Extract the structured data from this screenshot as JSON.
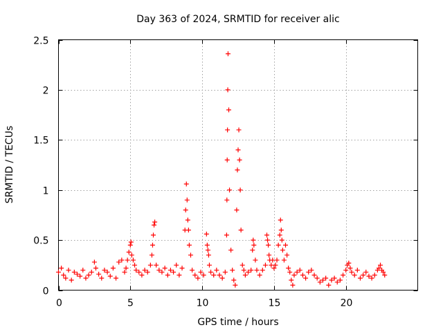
{
  "chart_data": {
    "type": "scatter",
    "title": "Day 363 of 2024, SRMTID for receiver alic",
    "xlabel": "GPS time / hours",
    "ylabel": "SRMTID / TECUs",
    "xlim": [
      0,
      25
    ],
    "ylim": [
      0,
      2.5
    ],
    "xticks": [
      0,
      5,
      10,
      15,
      20
    ],
    "yticks": [
      0,
      0.5,
      1,
      1.5,
      2,
      2.5
    ],
    "xtick_labels": [
      "0",
      "5",
      "10",
      "15",
      "20"
    ],
    "ytick_labels": [
      "0",
      "0.5",
      "1",
      "1.5",
      "2",
      "2.5"
    ],
    "grid": true,
    "marker": "+",
    "color": "#ff0000",
    "series": [
      {
        "name": "SRMTID",
        "x": [
          0.0,
          0.2,
          0.35,
          0.5,
          0.7,
          0.9,
          1.1,
          1.3,
          1.5,
          1.7,
          1.9,
          2.1,
          2.3,
          2.5,
          2.6,
          2.8,
          3.0,
          3.2,
          3.4,
          3.6,
          3.8,
          4.0,
          4.2,
          4.4,
          4.6,
          4.7,
          4.8,
          4.9,
          5.0,
          5.05,
          5.1,
          5.2,
          5.3,
          5.4,
          5.6,
          5.8,
          6.0,
          6.2,
          6.4,
          6.5,
          6.55,
          6.6,
          6.65,
          6.7,
          6.8,
          7.0,
          7.2,
          7.4,
          7.6,
          7.8,
          8.0,
          8.2,
          8.4,
          8.6,
          8.8,
          8.85,
          8.9,
          8.95,
          9.0,
          9.05,
          9.1,
          9.2,
          9.3,
          9.5,
          9.7,
          9.9,
          10.1,
          10.3,
          10.35,
          10.4,
          10.45,
          10.5,
          10.6,
          10.8,
          11.0,
          11.2,
          11.4,
          11.6,
          11.7,
          11.72,
          11.74,
          11.76,
          11.78,
          11.8,
          11.85,
          11.9,
          12.0,
          12.1,
          12.2,
          12.3,
          12.4,
          12.45,
          12.5,
          12.55,
          12.6,
          12.65,
          12.7,
          12.8,
          12.9,
          13.0,
          13.2,
          13.4,
          13.5,
          13.55,
          13.6,
          13.7,
          13.8,
          14.0,
          14.2,
          14.4,
          14.5,
          14.55,
          14.6,
          14.65,
          14.7,
          14.8,
          14.9,
          15.0,
          15.1,
          15.2,
          15.3,
          15.4,
          15.45,
          15.5,
          15.55,
          15.6,
          15.7,
          15.8,
          15.9,
          16.0,
          16.1,
          16.2,
          16.3,
          16.4,
          16.6,
          16.8,
          17.0,
          17.2,
          17.4,
          17.6,
          17.8,
          18.0,
          18.2,
          18.4,
          18.6,
          18.8,
          19.0,
          19.2,
          19.4,
          19.6,
          19.8,
          20.0,
          20.1,
          20.2,
          20.3,
          20.4,
          20.6,
          20.8,
          21.0,
          21.2,
          21.4,
          21.6,
          21.8,
          22.0,
          22.2,
          22.3,
          22.4,
          22.5,
          22.6,
          22.7
        ],
        "y": [
          0.18,
          0.22,
          0.15,
          0.12,
          0.2,
          0.1,
          0.18,
          0.16,
          0.14,
          0.2,
          0.12,
          0.15,
          0.18,
          0.28,
          0.22,
          0.16,
          0.12,
          0.2,
          0.18,
          0.14,
          0.22,
          0.12,
          0.28,
          0.3,
          0.18,
          0.22,
          0.3,
          0.38,
          0.45,
          0.48,
          0.35,
          0.3,
          0.25,
          0.2,
          0.18,
          0.15,
          0.2,
          0.18,
          0.25,
          0.35,
          0.45,
          0.55,
          0.65,
          0.68,
          0.25,
          0.2,
          0.18,
          0.22,
          0.15,
          0.2,
          0.18,
          0.25,
          0.15,
          0.22,
          0.6,
          0.8,
          1.06,
          0.9,
          0.7,
          0.6,
          0.45,
          0.35,
          0.2,
          0.15,
          0.12,
          0.18,
          0.15,
          0.56,
          0.45,
          0.4,
          0.35,
          0.25,
          0.18,
          0.15,
          0.2,
          0.15,
          0.12,
          0.18,
          0.55,
          0.9,
          1.3,
          1.6,
          2.0,
          2.36,
          1.8,
          1.0,
          0.4,
          0.2,
          0.1,
          0.05,
          0.8,
          1.2,
          1.4,
          1.6,
          1.3,
          1.0,
          0.6,
          0.25,
          0.2,
          0.15,
          0.18,
          0.2,
          0.4,
          0.5,
          0.45,
          0.3,
          0.2,
          0.15,
          0.2,
          0.25,
          0.55,
          0.5,
          0.45,
          0.35,
          0.3,
          0.25,
          0.3,
          0.22,
          0.25,
          0.3,
          0.45,
          0.55,
          0.7,
          0.6,
          0.5,
          0.4,
          0.3,
          0.45,
          0.35,
          0.22,
          0.18,
          0.1,
          0.05,
          0.15,
          0.18,
          0.2,
          0.15,
          0.12,
          0.18,
          0.2,
          0.15,
          0.12,
          0.08,
          0.1,
          0.12,
          0.05,
          0.1,
          0.12,
          0.08,
          0.1,
          0.15,
          0.2,
          0.25,
          0.27,
          0.22,
          0.18,
          0.15,
          0.2,
          0.12,
          0.15,
          0.18,
          0.14,
          0.12,
          0.15,
          0.2,
          0.22,
          0.25,
          0.2,
          0.18,
          0.15
        ]
      }
    ]
  }
}
